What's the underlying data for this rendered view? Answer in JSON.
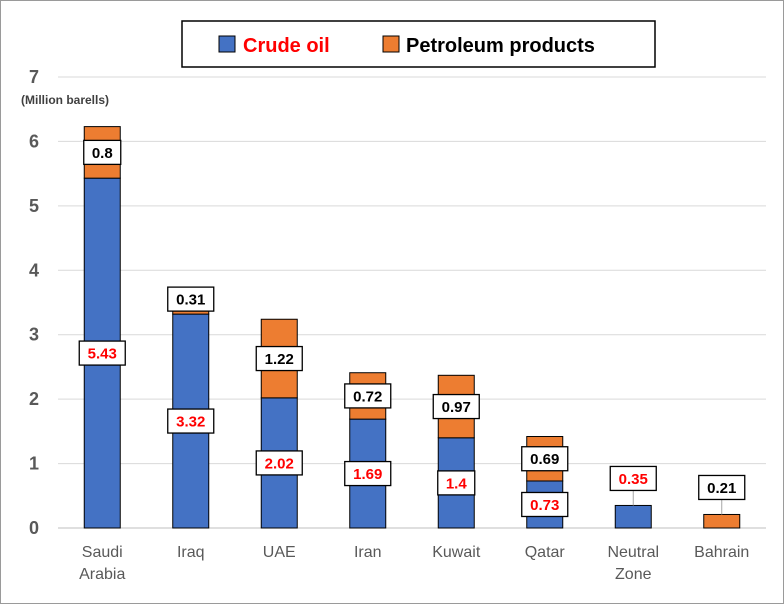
{
  "chart_data": {
    "type": "bar",
    "stacked": true,
    "categories": [
      "Saudi\nArabia",
      "Iraq",
      "UAE",
      "Iran",
      "Kuwait",
      "Qatar",
      "Neutral\nZone",
      "Bahrain"
    ],
    "series": [
      {
        "name": "Crude oil",
        "color": "#4472c4",
        "label_color": "#ff0000",
        "values": [
          5.43,
          3.32,
          2.02,
          1.69,
          1.4,
          0.73,
          0.35,
          0
        ]
      },
      {
        "name": "Petroleum products",
        "color": "#ed7d31",
        "label_color": "#000000",
        "values": [
          0.8,
          0.31,
          1.22,
          0.72,
          0.97,
          0.69,
          0,
          0.21
        ]
      }
    ],
    "ylim": [
      0,
      7
    ],
    "yticks": [
      0,
      1,
      2,
      3,
      4,
      5,
      6,
      7
    ],
    "ylabel": "(Million barells)",
    "grid": true,
    "legend": "top-center",
    "legend_colors": {
      "crude_text": "#ff0000",
      "products_text": "#000000"
    }
  }
}
